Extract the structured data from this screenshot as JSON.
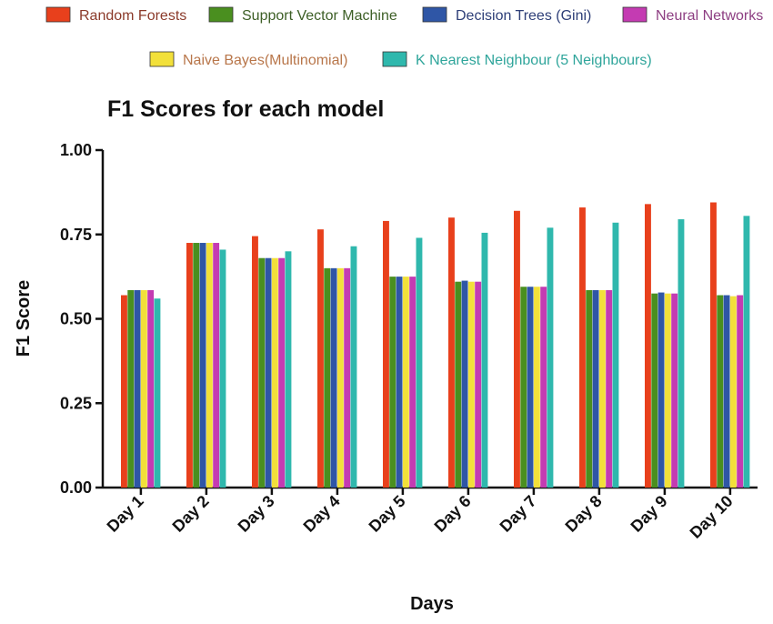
{
  "chart_data": {
    "type": "bar",
    "title": "F1 Scores for each model",
    "xlabel": "Days",
    "ylabel": "F1 Score",
    "ylim": [
      0,
      1
    ],
    "yticks": [
      "0.00",
      "0.25",
      "0.50",
      "0.75",
      "1.00"
    ],
    "categories": [
      "Day 1",
      "Day 2",
      "Day 3",
      "Day 4",
      "Day 5",
      "Day 6",
      "Day 7",
      "Day 8",
      "Day 9",
      "Day 10"
    ],
    "legend_position": "top",
    "grid": false,
    "series": [
      {
        "name": "Random Forests",
        "color": "#e8401c",
        "legend_text_color": "#8b3a2a",
        "values": [
          0.57,
          0.725,
          0.745,
          0.765,
          0.79,
          0.8,
          0.82,
          0.83,
          0.84,
          0.845
        ]
      },
      {
        "name": "Support Vector Machine",
        "color": "#4a8f1f",
        "legend_text_color": "#3d5f26",
        "values": [
          0.585,
          0.725,
          0.68,
          0.65,
          0.625,
          0.61,
          0.595,
          0.585,
          0.575,
          0.57
        ]
      },
      {
        "name": "Decision Trees (Gini)",
        "color": "#2f56a6",
        "legend_text_color": "#2e3f78",
        "values": [
          0.585,
          0.725,
          0.68,
          0.65,
          0.625,
          0.613,
          0.595,
          0.585,
          0.578,
          0.57
        ]
      },
      {
        "name": "Naive Bayes(Multinomial)",
        "color": "#f2e03a",
        "legend_text_color": "#b8764a",
        "values": [
          0.585,
          0.725,
          0.68,
          0.65,
          0.625,
          0.61,
          0.595,
          0.585,
          0.575,
          0.567
        ]
      },
      {
        "name": "Neural Networks",
        "color": "#c43bb2",
        "legend_text_color": "#8d3e82",
        "values": [
          0.585,
          0.725,
          0.68,
          0.65,
          0.625,
          0.61,
          0.595,
          0.585,
          0.575,
          0.57
        ]
      },
      {
        "name": "K Nearest Neighbour (5 Neighbours)",
        "color": "#2fb8ad",
        "legend_text_color": "#2fa59b",
        "values": [
          0.56,
          0.705,
          0.7,
          0.715,
          0.74,
          0.755,
          0.77,
          0.785,
          0.795,
          0.805
        ]
      }
    ]
  },
  "legend_order": [
    [
      "Random Forests",
      "Support Vector Machine",
      "Decision Trees (Gini)",
      "Neural Networks"
    ],
    [
      "Naive Bayes(Multinomial)",
      "K Nearest Neighbour (5 Neighbours)"
    ]
  ]
}
